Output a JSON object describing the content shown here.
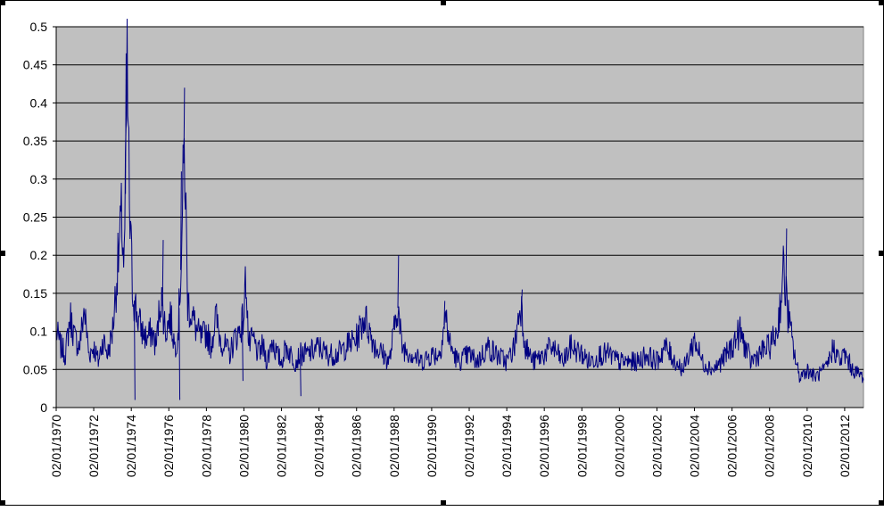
{
  "colors": {
    "plot_background": "#c0c0c0",
    "series_line": "#000080",
    "gridline": "#000000",
    "chart_background": "#ffffff"
  },
  "chart_data": {
    "type": "line",
    "title": "",
    "xlabel": "",
    "ylabel": "",
    "ylim": [
      0,
      0.5
    ],
    "xlim": [
      "1970-01-02",
      "2013-01-02"
    ],
    "grid": true,
    "legend": "none",
    "y_ticks": [
      "0",
      "0.05",
      "0.1",
      "0.15",
      "0.2",
      "0.25",
      "0.3",
      "0.35",
      "0.4",
      "0.45",
      "0.5"
    ],
    "x_ticks": [
      "02/01/1970",
      "02/01/1972",
      "02/01/1974",
      "02/01/1976",
      "02/01/1978",
      "02/01/1980",
      "02/01/1982",
      "02/01/1984",
      "02/01/1986",
      "02/01/1988",
      "02/01/1990",
      "02/01/1992",
      "02/01/1994",
      "02/01/1996",
      "02/01/1998",
      "02/01/2000",
      "02/01/2002",
      "02/01/2004",
      "02/01/2006",
      "02/01/2008",
      "02/01/2010",
      "02/01/2012"
    ],
    "series": [
      {
        "x": [
          "1970-01-02",
          "1970-04-01",
          "1970-07-01",
          "1970-10-01",
          "1971-01-01",
          "1971-04-01",
          "1971-07-01",
          "1971-10-01",
          "1972-01-01",
          "1972-04-01",
          "1972-07-01",
          "1972-10-01",
          "1973-01-01",
          "1973-03-01",
          "1973-05-01",
          "1973-07-01",
          "1973-08-15",
          "1973-09-15",
          "1973-10-15",
          "1973-12-01",
          "1974-02-01",
          "1974-05-01",
          "1974-08-01",
          "1974-11-01",
          "1975-02-01",
          "1975-05-01",
          "1975-08-01",
          "1975-11-01",
          "1976-02-01",
          "1976-05-01",
          "1976-07-01",
          "1976-09-01",
          "1976-11-01",
          "1977-01-01",
          "1977-04-01",
          "1977-07-01",
          "1977-10-01",
          "1978-01-01",
          "1978-04-01",
          "1978-07-01",
          "1978-10-01",
          "1979-01-01",
          "1979-04-01",
          "1979-07-01",
          "1979-10-01",
          "1980-01-01",
          "1980-02-15",
          "1980-04-01",
          "1980-07-01",
          "1980-10-01",
          "1981-01-01",
          "1981-04-01",
          "1981-07-01",
          "1981-10-01",
          "1982-01-01",
          "1982-04-01",
          "1982-07-01",
          "1982-10-01",
          "1983-01-01",
          "1983-06-01",
          "1984-01-01",
          "1984-06-01",
          "1985-01-01",
          "1985-06-01",
          "1986-01-01",
          "1986-06-01",
          "1987-01-01",
          "1987-06-01",
          "1987-10-01",
          "1988-01-01",
          "1988-03-01",
          "1988-06-01",
          "1989-01-01",
          "1989-06-01",
          "1990-01-01",
          "1990-06-01",
          "1990-10-01",
          "1991-01-01",
          "1991-06-01",
          "1992-01-01",
          "1992-06-01",
          "1993-01-01",
          "1993-06-01",
          "1994-01-01",
          "1994-06-01",
          "1994-10-01",
          "1995-01-01",
          "1995-06-01",
          "1996-01-01",
          "1996-06-01",
          "1997-01-01",
          "1997-06-01",
          "1998-01-01",
          "1998-06-01",
          "1999-01-01",
          "1999-06-01",
          "2000-01-01",
          "2000-06-01",
          "2001-01-01",
          "2001-06-01",
          "2002-01-01",
          "2002-06-01",
          "2003-01-01",
          "2003-06-01",
          "2004-01-01",
          "2004-06-01",
          "2005-01-01",
          "2005-06-01",
          "2006-01-01",
          "2006-06-01",
          "2007-01-01",
          "2007-06-01",
          "2008-01-01",
          "2008-06-01",
          "2008-10-01",
          "2009-01-01",
          "2009-04-01",
          "2009-08-01",
          "2010-01-01",
          "2010-06-01",
          "2011-01-01",
          "2011-06-01",
          "2011-10-01",
          "2012-01-01",
          "2012-06-01",
          "2013-01-02"
        ],
        "values": [
          0.1,
          0.08,
          0.07,
          0.12,
          0.09,
          0.08,
          0.13,
          0.07,
          0.08,
          0.06,
          0.09,
          0.07,
          0.1,
          0.15,
          0.2,
          0.25,
          0.18,
          0.3,
          0.44,
          0.25,
          0.15,
          0.12,
          0.1,
          0.09,
          0.1,
          0.08,
          0.15,
          0.1,
          0.12,
          0.08,
          0.1,
          0.2,
          0.35,
          0.14,
          0.12,
          0.1,
          0.09,
          0.1,
          0.08,
          0.12,
          0.09,
          0.08,
          0.07,
          0.09,
          0.1,
          0.12,
          0.18,
          0.08,
          0.09,
          0.07,
          0.08,
          0.06,
          0.09,
          0.07,
          0.06,
          0.08,
          0.07,
          0.06,
          0.07,
          0.07,
          0.08,
          0.07,
          0.07,
          0.08,
          0.09,
          0.12,
          0.08,
          0.07,
          0.06,
          0.1,
          0.14,
          0.08,
          0.07,
          0.06,
          0.07,
          0.07,
          0.12,
          0.08,
          0.06,
          0.07,
          0.06,
          0.08,
          0.07,
          0.06,
          0.08,
          0.14,
          0.08,
          0.06,
          0.07,
          0.08,
          0.06,
          0.08,
          0.07,
          0.06,
          0.07,
          0.07,
          0.06,
          0.06,
          0.06,
          0.07,
          0.06,
          0.08,
          0.06,
          0.05,
          0.09,
          0.06,
          0.05,
          0.06,
          0.08,
          0.1,
          0.06,
          0.07,
          0.08,
          0.1,
          0.18,
          0.12,
          0.08,
          0.04,
          0.05,
          0.04,
          0.05,
          0.08,
          0.06,
          0.07,
          0.05,
          0.04
        ],
        "spikes": [
          {
            "x": "1973-09-10",
            "value": 0.465
          },
          {
            "x": "1974-03-01",
            "value": 0.01
          },
          {
            "x": "1975-09-01",
            "value": 0.22
          },
          {
            "x": "1976-08-20",
            "value": 0.31
          },
          {
            "x": "1976-10-20",
            "value": 0.42
          },
          {
            "x": "1976-07-20",
            "value": 0.01
          },
          {
            "x": "1979-12-01",
            "value": 0.035
          },
          {
            "x": "1983-01-01",
            "value": 0.015
          },
          {
            "x": "1988-03-15",
            "value": 0.2
          },
          {
            "x": "1990-09-01",
            "value": 0.14
          },
          {
            "x": "1994-10-15",
            "value": 0.155
          },
          {
            "x": "2008-11-15",
            "value": 0.235
          }
        ]
      }
    ]
  }
}
